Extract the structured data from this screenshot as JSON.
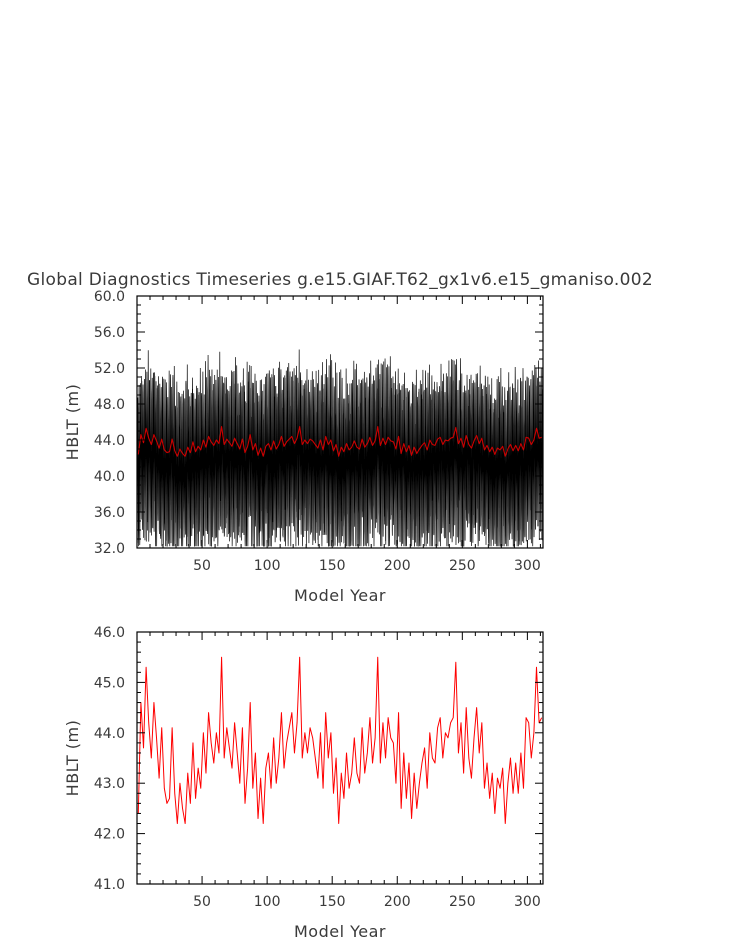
{
  "chart_data": [
    {
      "type": "line",
      "title": "Global Diagnostics Timeseries g.e15.GIAF.T62_gx1v6.e15_gmaniso.002",
      "xlabel": "Model Year",
      "ylabel": "HBLT (m)",
      "xlim": [
        0,
        312
      ],
      "ylim": [
        32,
        60
      ],
      "xticks": [
        "50",
        "100",
        "150",
        "200",
        "250",
        "300"
      ],
      "yticks": [
        "32.0",
        "36.0",
        "40.0",
        "44.0",
        "48.0",
        "52.0",
        "56.0",
        "60.0"
      ],
      "grid": false,
      "series": [
        {
          "color": "#000000",
          "description_of_values": "monthly values oscillating with annual cycle between about 34 and 58 around the annual mean",
          "x_start": 0.04,
          "x_end": 311.96,
          "points_per_year": 12,
          "seasonal_amplitude_approx": 8.5
        },
        {
          "color": "#cc0000",
          "x": [
            1,
            3,
            5,
            7,
            9,
            11,
            13,
            15,
            17,
            19,
            21,
            23,
            25,
            27,
            29,
            31,
            33,
            35,
            37,
            39,
            41,
            43,
            45,
            47,
            49,
            51,
            53,
            55,
            57,
            59,
            61,
            63,
            65,
            67,
            69,
            71,
            73,
            75,
            77,
            79,
            81,
            83,
            85,
            87,
            89,
            91,
            93,
            95,
            97,
            99,
            101,
            103,
            105,
            107,
            109,
            111,
            113,
            115,
            117,
            119,
            121,
            123,
            125,
            127,
            129,
            131,
            133,
            135,
            137,
            139,
            141,
            143,
            145,
            147,
            149,
            151,
            153,
            155,
            157,
            159,
            161,
            163,
            165,
            167,
            169,
            171,
            173,
            175,
            177,
            179,
            181,
            183,
            185,
            187,
            189,
            191,
            193,
            195,
            197,
            199,
            201,
            203,
            205,
            207,
            209,
            211,
            213,
            215,
            217,
            219,
            221,
            223,
            225,
            227,
            229,
            231,
            233,
            235,
            237,
            239,
            241,
            243,
            245,
            247,
            249,
            251,
            253,
            255,
            257,
            259,
            261,
            263,
            265,
            267,
            269,
            271,
            273,
            275,
            277,
            279,
            281,
            283,
            285,
            287,
            289,
            291,
            293,
            295,
            297,
            299,
            301,
            303,
            305,
            307,
            309,
            311
          ],
          "values": [
            42.4,
            44.6,
            43.7,
            45.3,
            44.2,
            43.5,
            44.6,
            43.9,
            43.1,
            44.1,
            42.9,
            42.6,
            42.7,
            44.1,
            42.8,
            42.2,
            43.0,
            42.5,
            42.2,
            43.2,
            42.6,
            43.8,
            42.7,
            43.3,
            42.9,
            44.0,
            43.2,
            44.4,
            43.8,
            43.4,
            44.0,
            43.6,
            45.5,
            43.5,
            44.1,
            43.7,
            43.3,
            44.2,
            43.6,
            43.0,
            44.1,
            42.6,
            43.3,
            44.6,
            42.9,
            43.6,
            42.3,
            43.1,
            42.2,
            43.3,
            43.6,
            42.9,
            43.9,
            43.0,
            43.5,
            44.4,
            43.3,
            43.8,
            44.1,
            44.4,
            43.6,
            44.2,
            45.5,
            43.5,
            44.0,
            43.6,
            44.1,
            43.9,
            43.5,
            43.1,
            44.0,
            42.9,
            44.4,
            43.5,
            44.0,
            42.8,
            43.5,
            42.2,
            43.2,
            42.7,
            43.6,
            42.9,
            43.2,
            43.9,
            43.2,
            43.0,
            44.1,
            43.2,
            43.6,
            44.3,
            43.4,
            43.9,
            45.5,
            43.4,
            44.2,
            43.5,
            44.3,
            43.9,
            43.8,
            43.0,
            44.4,
            42.5,
            43.6,
            42.7,
            43.4,
            42.3,
            43.2,
            42.5,
            43.0,
            43.4,
            43.7,
            42.9,
            44.0,
            43.5,
            43.4,
            44.1,
            44.3,
            43.5,
            44.0,
            43.9,
            44.2,
            44.3,
            45.4,
            43.6,
            44.2,
            43.2,
            44.5,
            43.5,
            43.1,
            43.9,
            44.5,
            43.6,
            44.2,
            42.9,
            43.4,
            42.7,
            43.2,
            42.4,
            43.1,
            42.9,
            43.3,
            42.2,
            43.0,
            43.5,
            42.8,
            43.4,
            42.8,
            43.6,
            42.9,
            44.3,
            44.2,
            43.5,
            44.0,
            45.3,
            44.2,
            44.3
          ]
        }
      ]
    },
    {
      "type": "line",
      "title": "",
      "xlabel": "Model Year",
      "ylabel": "HBLT (m)",
      "xlim": [
        0,
        312
      ],
      "ylim": [
        41,
        46
      ],
      "xticks": [
        "50",
        "100",
        "150",
        "200",
        "250",
        "300"
      ],
      "yticks": [
        "41.0",
        "42.0",
        "43.0",
        "44.0",
        "45.0",
        "46.0"
      ],
      "grid": false,
      "series": [
        {
          "color": "#ff0000",
          "ref": "same annual-mean series as red line above"
        }
      ]
    }
  ],
  "colors": {
    "axis": "#000000",
    "text": "#3a3a3a",
    "annual": "#ff0000",
    "annual_top": "#cc0000",
    "monthly": "#000000"
  }
}
